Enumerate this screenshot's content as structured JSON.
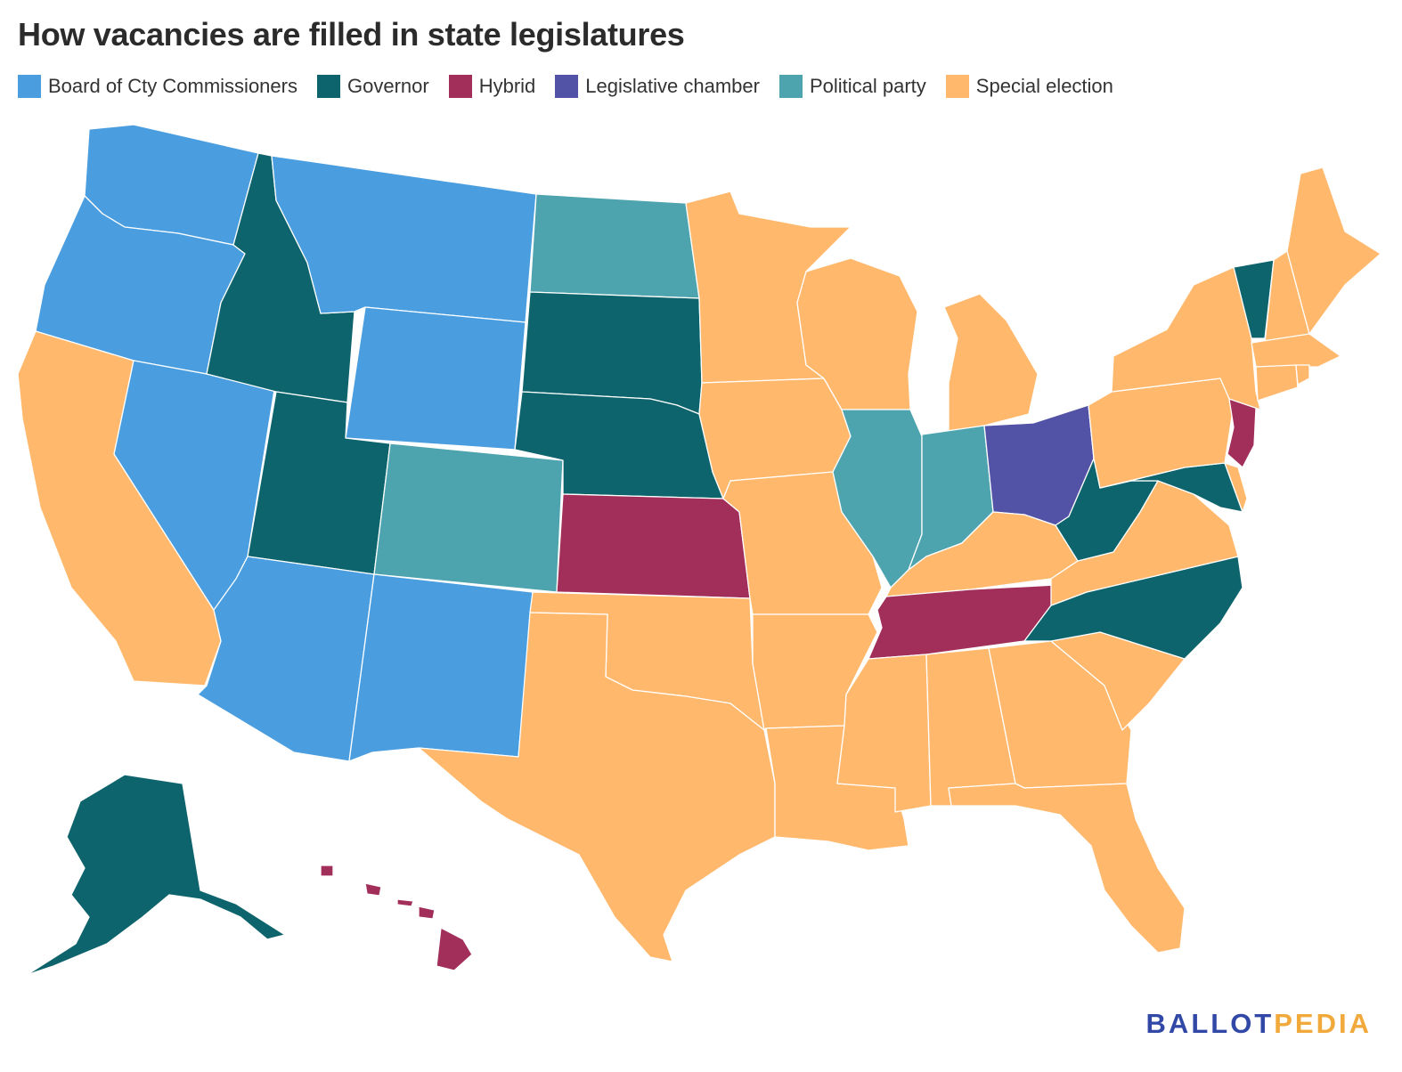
{
  "title": "How vacancies are filled in state legislatures",
  "legend": [
    {
      "label": "Board of Cty Commissioners",
      "color": "#4a9ee0"
    },
    {
      "label": "Governor",
      "color": "#0e646c"
    },
    {
      "label": "Hybrid",
      "color": "#a22e5a"
    },
    {
      "label": "Legislative chamber",
      "color": "#5252a6"
    },
    {
      "label": "Political party",
      "color": "#4ea4ae"
    },
    {
      "label": "Special election",
      "color": "#ffb86c"
    }
  ],
  "states": {
    "WA": "Board of Cty Commissioners",
    "OR": "Board of Cty Commissioners",
    "NV": "Board of Cty Commissioners",
    "MT": "Board of Cty Commissioners",
    "WY": "Board of Cty Commissioners",
    "AZ": "Board of Cty Commissioners",
    "NM": "Board of Cty Commissioners",
    "ID": "Governor",
    "UT": "Governor",
    "SD": "Governor",
    "NE": "Governor",
    "AK": "Governor",
    "VT": "Governor",
    "WV": "Governor",
    "MD": "Governor",
    "NC": "Governor",
    "KS": "Hybrid",
    "TN": "Hybrid",
    "NJ": "Hybrid",
    "HI": "Hybrid",
    "OH": "Legislative chamber",
    "ND": "Political party",
    "CO": "Political party",
    "IL": "Political party",
    "IN": "Political party",
    "CA": "Special election",
    "TX": "Special election",
    "OK": "Special election",
    "MN": "Special election",
    "IA": "Special election",
    "MO": "Special election",
    "AR": "Special election",
    "LA": "Special election",
    "WI": "Special election",
    "MI": "Special election",
    "KY": "Special election",
    "MS": "Special election",
    "AL": "Special election",
    "GA": "Special election",
    "FL": "Special election",
    "SC": "Special election",
    "VA": "Special election",
    "PA": "Special election",
    "NY": "Special election",
    "ME": "Special election",
    "NH": "Special election",
    "MA": "Special election",
    "CT": "Special election",
    "RI": "Special election",
    "DE": "Special election"
  },
  "brand": {
    "part1": "BALLOT",
    "part2": "PEDIA"
  }
}
